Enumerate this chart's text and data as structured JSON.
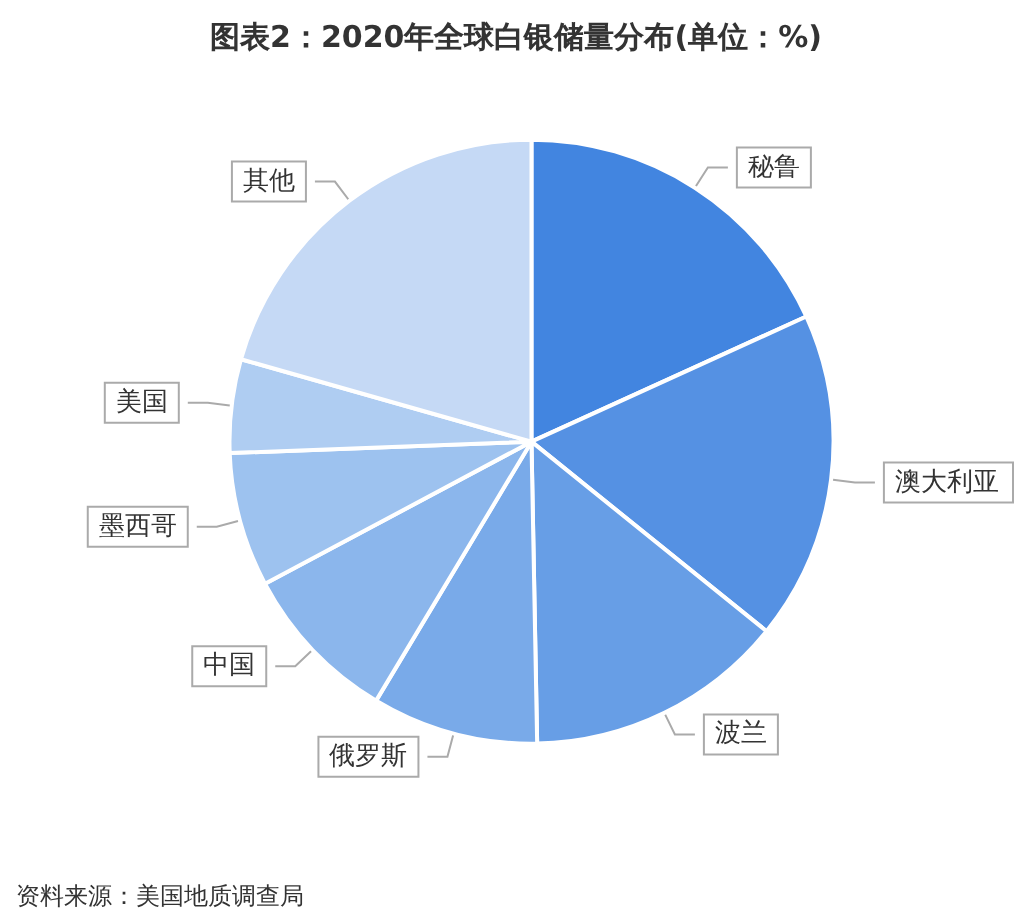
{
  "chart_data": {
    "type": "pie",
    "title": "图表2：2020年全球白银储量分布(单位：%)",
    "categories": [
      "秘鲁",
      "澳大利亚",
      "波兰",
      "俄罗斯",
      "中国",
      "墨西哥",
      "美国",
      "其他"
    ],
    "values": [
      18.2,
      17.6,
      13.9,
      8.9,
      8.6,
      7.2,
      5.0,
      20.6
    ],
    "colors": [
      "#4285e0",
      "#5591e3",
      "#679ee6",
      "#79aae9",
      "#8bb6ec",
      "#9dc2ef",
      "#afcdf2",
      "#c5d9f5"
    ],
    "annotations": [
      "资料来源：美国地质调查局"
    ]
  }
}
